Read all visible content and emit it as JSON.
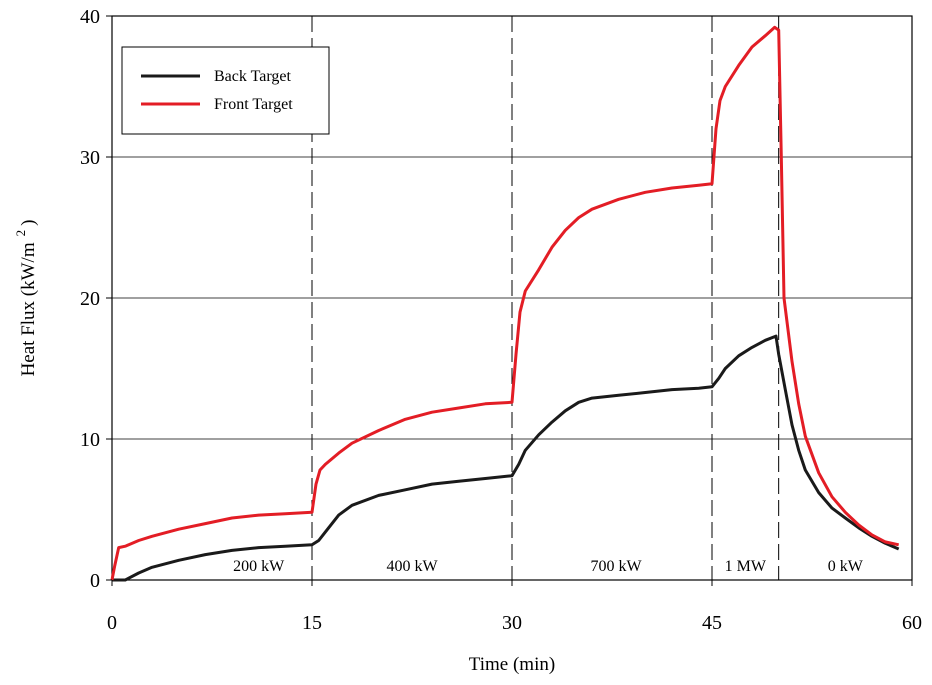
{
  "chart_data": {
    "type": "line",
    "xlabel": "Time (min)",
    "ylabel": "Heat Flux (kW/m",
    "ylabel_sup": "2",
    "ylabel_close": ")",
    "xlim": [
      0,
      60
    ],
    "ylim": [
      0,
      40
    ],
    "xticks": [
      0,
      15,
      30,
      45,
      60
    ],
    "yticks": [
      0,
      10,
      20,
      30,
      40
    ],
    "grid": "horizontal",
    "legend_position": "top-left",
    "phase_lines": [
      15,
      30,
      45,
      50
    ],
    "phase_labels": [
      {
        "text": "200 kW",
        "x": 11.0
      },
      {
        "text": "400 kW",
        "x": 22.5
      },
      {
        "text": "700 kW",
        "x": 37.8
      },
      {
        "text": "1 MW",
        "x": 47.5
      },
      {
        "text": "0 kW",
        "x": 55.0
      }
    ],
    "series": [
      {
        "name": "Back Target",
        "color": "#1a1a1a",
        "points": [
          [
            0,
            0
          ],
          [
            1,
            0
          ],
          [
            2,
            0.5
          ],
          [
            3,
            0.9
          ],
          [
            5,
            1.4
          ],
          [
            7,
            1.8
          ],
          [
            9,
            2.1
          ],
          [
            11,
            2.3
          ],
          [
            13,
            2.4
          ],
          [
            15,
            2.5
          ],
          [
            15.5,
            2.8
          ],
          [
            16,
            3.4
          ],
          [
            17,
            4.6
          ],
          [
            18,
            5.3
          ],
          [
            20,
            6.0
          ],
          [
            22,
            6.4
          ],
          [
            24,
            6.8
          ],
          [
            26,
            7.0
          ],
          [
            28,
            7.2
          ],
          [
            30,
            7.4
          ],
          [
            30.5,
            8.2
          ],
          [
            31,
            9.2
          ],
          [
            32,
            10.3
          ],
          [
            33,
            11.2
          ],
          [
            34,
            12.0
          ],
          [
            35,
            12.6
          ],
          [
            36,
            12.9
          ],
          [
            38,
            13.1
          ],
          [
            40,
            13.3
          ],
          [
            42,
            13.5
          ],
          [
            44,
            13.6
          ],
          [
            45,
            13.7
          ],
          [
            45.5,
            14.3
          ],
          [
            46,
            15.0
          ],
          [
            47,
            15.9
          ],
          [
            48,
            16.5
          ],
          [
            49,
            17.0
          ],
          [
            49.8,
            17.3
          ],
          [
            50,
            16.0
          ],
          [
            50.5,
            13.5
          ],
          [
            51,
            11.0
          ],
          [
            51.5,
            9.2
          ],
          [
            52,
            7.8
          ],
          [
            53,
            6.2
          ],
          [
            54,
            5.1
          ],
          [
            55,
            4.4
          ],
          [
            56,
            3.7
          ],
          [
            57,
            3.1
          ],
          [
            58,
            2.6
          ],
          [
            59,
            2.2
          ]
        ]
      },
      {
        "name": "Front Target",
        "color": "#e31d25",
        "points": [
          [
            0,
            0
          ],
          [
            0.2,
            1.0
          ],
          [
            0.5,
            2.3
          ],
          [
            1,
            2.4
          ],
          [
            2,
            2.8
          ],
          [
            3,
            3.1
          ],
          [
            5,
            3.6
          ],
          [
            7,
            4.0
          ],
          [
            9,
            4.4
          ],
          [
            11,
            4.6
          ],
          [
            13,
            4.7
          ],
          [
            15,
            4.8
          ],
          [
            15.3,
            6.8
          ],
          [
            15.6,
            7.8
          ],
          [
            16,
            8.2
          ],
          [
            17,
            9.0
          ],
          [
            18,
            9.7
          ],
          [
            20,
            10.6
          ],
          [
            22,
            11.4
          ],
          [
            24,
            11.9
          ],
          [
            26,
            12.2
          ],
          [
            28,
            12.5
          ],
          [
            30,
            12.6
          ],
          [
            30.3,
            16.0
          ],
          [
            30.6,
            19.0
          ],
          [
            31,
            20.5
          ],
          [
            32,
            22.0
          ],
          [
            33,
            23.6
          ],
          [
            34,
            24.8
          ],
          [
            35,
            25.7
          ],
          [
            36,
            26.3
          ],
          [
            38,
            27.0
          ],
          [
            40,
            27.5
          ],
          [
            42,
            27.8
          ],
          [
            44,
            28.0
          ],
          [
            45,
            28.1
          ],
          [
            45.3,
            32.0
          ],
          [
            45.6,
            34.0
          ],
          [
            46,
            35.0
          ],
          [
            47,
            36.5
          ],
          [
            48,
            37.8
          ],
          [
            49,
            38.6
          ],
          [
            49.7,
            39.2
          ],
          [
            50,
            39.0
          ],
          [
            50.2,
            30.0
          ],
          [
            50.4,
            20.0
          ],
          [
            51,
            15.5
          ],
          [
            51.5,
            12.5
          ],
          [
            52,
            10.2
          ],
          [
            53,
            7.6
          ],
          [
            54,
            5.9
          ],
          [
            55,
            4.8
          ],
          [
            56,
            3.9
          ],
          [
            57,
            3.2
          ],
          [
            58,
            2.7
          ],
          [
            59,
            2.5
          ]
        ]
      }
    ]
  }
}
